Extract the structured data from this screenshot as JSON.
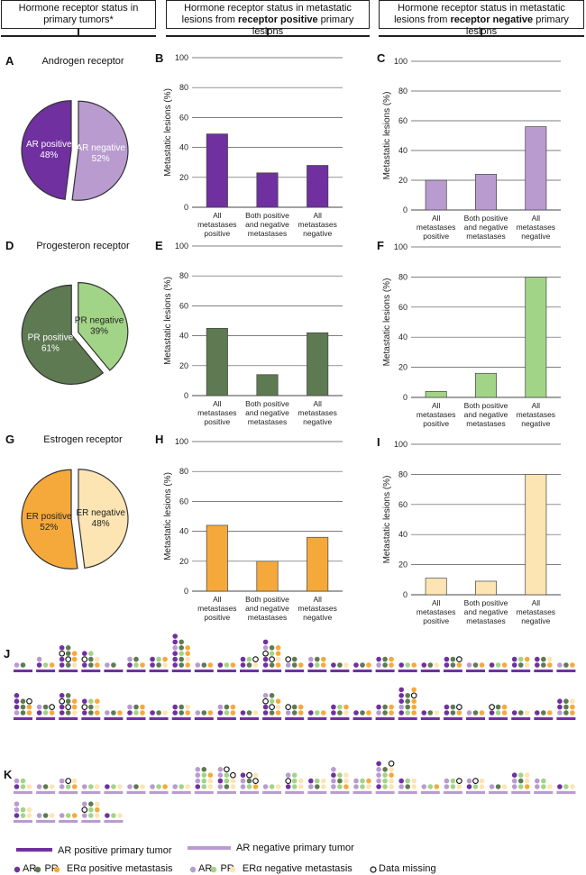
{
  "colors": {
    "ar_pos": "#7030a0",
    "ar_neg": "#b99bd0",
    "pr_pos": "#5e7a52",
    "pr_neg": "#a2d487",
    "er_pos": "#f6a93b",
    "er_neg": "#fde4b3"
  },
  "headers": {
    "col1": "Hormone receptor status in primary tumors*",
    "col2_pre": "Hormone receptor status in metastatic lesions from ",
    "col2_bold": "receptor positive",
    "col2_post": " primary lesions",
    "col3_pre": "Hormone receptor status in metastatic lesions from ",
    "col3_bold": "receptor negative",
    "col3_post": " primary lesions"
  },
  "panel_letters": [
    "A",
    "B",
    "C",
    "D",
    "E",
    "F",
    "G",
    "H",
    "I",
    "J",
    "K"
  ],
  "pie_titles": {
    "A": "Androgen receptor",
    "D": "Progesteron receptor",
    "G": "Estrogen receptor"
  },
  "chart_data": [
    {
      "panel": "A",
      "type": "pie",
      "title": "Androgen receptor",
      "slices": [
        {
          "label": "AR positive",
          "value": 48,
          "pct": "48%"
        },
        {
          "label": "AR negative",
          "value": 52,
          "pct": "52%"
        }
      ]
    },
    {
      "panel": "D",
      "type": "pie",
      "title": "Progesteron receptor",
      "slices": [
        {
          "label": "PR positive",
          "value": 61,
          "pct": "61%"
        },
        {
          "label": "PR negative",
          "value": 39,
          "pct": "39%"
        }
      ]
    },
    {
      "panel": "G",
      "type": "pie",
      "title": "Estrogen receptor",
      "slices": [
        {
          "label": "ER positive",
          "value": 52,
          "pct": "52%"
        },
        {
          "label": "ER negative",
          "value": 48,
          "pct": "48%"
        }
      ]
    },
    {
      "panel": "B",
      "type": "bar",
      "ylabel": "Metastatic lesions (%)",
      "ylim": [
        0,
        100
      ],
      "yticks": [
        0,
        20,
        40,
        60,
        80,
        100
      ],
      "categories": [
        "All metastases positive",
        "Both positive and negative metastases",
        "All metastases negative"
      ],
      "values": [
        49,
        23,
        28
      ],
      "color_key": "ar_pos"
    },
    {
      "panel": "C",
      "type": "bar",
      "ylabel": "Metastatic lesions (%)",
      "ylim": [
        0,
        100
      ],
      "yticks": [
        0,
        20,
        40,
        60,
        80,
        100
      ],
      "categories": [
        "All metastases positive",
        "Both positive and negative metastases",
        "All metastases negative"
      ],
      "values": [
        20,
        24,
        56
      ],
      "color_key": "ar_neg"
    },
    {
      "panel": "E",
      "type": "bar",
      "ylabel": "Metastatic lesions (%)",
      "ylim": [
        0,
        100
      ],
      "yticks": [
        0,
        20,
        40,
        60,
        80,
        100
      ],
      "categories": [
        "All metastases positive",
        "Both positive and negative metastases",
        "All metastases negative"
      ],
      "values": [
        45,
        14,
        42
      ],
      "color_key": "pr_pos"
    },
    {
      "panel": "F",
      "type": "bar",
      "ylabel": "Metastatic lesions (%)",
      "ylim": [
        0,
        100
      ],
      "yticks": [
        0,
        20,
        40,
        60,
        80,
        100
      ],
      "categories": [
        "All metastases positive",
        "Both positive and negative metastases",
        "All metastases negative"
      ],
      "values": [
        4,
        16,
        80
      ],
      "color_key": "pr_neg"
    },
    {
      "panel": "H",
      "type": "bar",
      "ylabel": "Metastatic lesions (%)",
      "ylim": [
        0,
        100
      ],
      "yticks": [
        0,
        20,
        40,
        60,
        80,
        100
      ],
      "categories": [
        "All metastases positive",
        "Both positive and negative metastases",
        "All metastases negative"
      ],
      "values": [
        44,
        20,
        36
      ],
      "color_key": "er_pos"
    },
    {
      "panel": "I",
      "type": "bar",
      "ylabel": "Metastatic lesions (%)",
      "ylim": [
        0,
        100
      ],
      "yticks": [
        0,
        20,
        40,
        60,
        80,
        100
      ],
      "categories": [
        "All metastases positive",
        "Both positive and negative metastases",
        "All metastases negative"
      ],
      "values": [
        11,
        9,
        80
      ],
      "color_key": "er_neg"
    }
  ],
  "patients_J": {
    "primary": "pos",
    "rows": [
      [
        [
          1,
          1,
          0
        ],
        [
          2,
          1,
          1
        ],
        [
          4,
          4,
          3
        ],
        [
          3,
          3,
          2
        ],
        [
          1,
          1,
          0
        ],
        [
          2,
          2,
          1
        ],
        [
          2,
          2,
          2
        ],
        [
          6,
          5,
          4
        ],
        [
          1,
          1,
          1
        ],
        [
          1,
          1,
          1
        ],
        [
          2,
          2,
          2
        ],
        [
          5,
          4,
          4
        ],
        [
          2,
          2,
          1
        ],
        [
          2,
          2,
          2
        ],
        [
          1,
          1,
          1
        ],
        [
          1,
          1,
          1
        ],
        [
          2,
          2,
          2
        ],
        [
          1,
          1,
          1
        ],
        [
          1,
          1,
          1
        ],
        [
          2,
          2,
          2
        ],
        [
          1,
          1,
          1
        ],
        [
          1,
          1,
          1
        ],
        [
          2,
          2,
          2
        ],
        [
          2,
          2,
          2
        ],
        [
          1,
          1,
          1
        ]
      ],
      [
        [
          4,
          3,
          3
        ],
        [
          2,
          2,
          2
        ],
        [
          4,
          4,
          3
        ],
        [
          3,
          3,
          3
        ],
        [
          1,
          1,
          1
        ],
        [
          2,
          2,
          2
        ],
        [
          1,
          1,
          1
        ],
        [
          2,
          2,
          2
        ],
        [
          1,
          1,
          1
        ],
        [
          2,
          2,
          2
        ],
        [
          1,
          1,
          1
        ],
        [
          4,
          4,
          3
        ],
        [
          2,
          2,
          2
        ],
        [
          1,
          1,
          1
        ],
        [
          2,
          2,
          2
        ],
        [
          1,
          1,
          1
        ],
        [
          2,
          2,
          2
        ],
        [
          5,
          4,
          5
        ],
        [
          1,
          1,
          1
        ],
        [
          2,
          2,
          2
        ],
        [
          1,
          1,
          1
        ],
        [
          2,
          2,
          2
        ],
        [
          1,
          1,
          1
        ],
        [
          1,
          1,
          1
        ],
        [
          3,
          3,
          3
        ]
      ]
    ]
  },
  "patients_K": {
    "primary": "neg",
    "rows": [
      [
        [
          2,
          2,
          1
        ],
        [
          1,
          1,
          1
        ],
        [
          2,
          2,
          2
        ],
        [
          1,
          1,
          1
        ],
        [
          1,
          1,
          1
        ],
        [
          1,
          1,
          1
        ],
        [
          1,
          1,
          1
        ],
        [
          1,
          1,
          1
        ],
        [
          4,
          4,
          3
        ],
        [
          4,
          4,
          3
        ],
        [
          3,
          3,
          3
        ],
        [
          1,
          1,
          1
        ],
        [
          3,
          3,
          2
        ],
        [
          2,
          2,
          2
        ],
        [
          4,
          3,
          3
        ],
        [
          2,
          2,
          2
        ],
        [
          5,
          4,
          5
        ],
        [
          2,
          2,
          2
        ],
        [
          1,
          1,
          1
        ],
        [
          2,
          2,
          2
        ],
        [
          2,
          2,
          2
        ],
        [
          1,
          1,
          1
        ],
        [
          3,
          3,
          3
        ],
        [
          2,
          2,
          1
        ],
        [
          1,
          1,
          1
        ]
      ],
      [
        [
          3,
          2,
          2
        ],
        [
          1,
          1,
          1
        ],
        [
          1,
          1,
          1
        ],
        [
          3,
          3,
          3
        ],
        [
          1,
          1,
          1
        ]
      ]
    ]
  },
  "legend": {
    "ar_pos_primary": "AR positive primary tumor",
    "ar_neg_primary": "AR negative primary tumor",
    "positive_metastasis": "AR   PR   ERα positive metastasis",
    "negative_metastasis": "AR   PR   ERα negative metastasis",
    "data_missing": "Data missing"
  }
}
